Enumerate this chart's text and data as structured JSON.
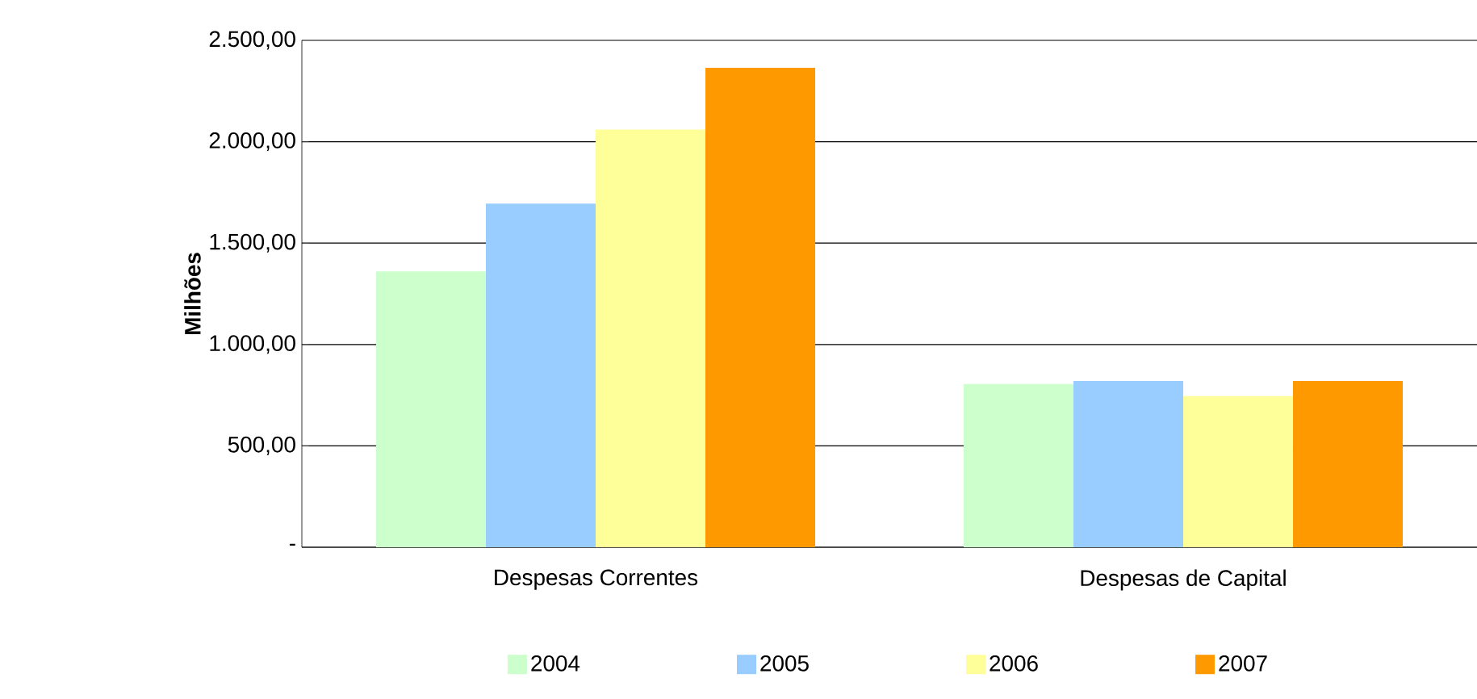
{
  "chart_data": {
    "type": "bar",
    "ylabel": "Milhões",
    "categories": [
      "Despesas Correntes",
      "Despesas de Capital"
    ],
    "series": [
      {
        "name": "2004",
        "color": "#ccffcc",
        "values": [
          1360,
          805
        ]
      },
      {
        "name": "2005",
        "color": "#99ccff",
        "values": [
          1695,
          820
        ]
      },
      {
        "name": "2006",
        "color": "#ffff99",
        "values": [
          2060,
          745
        ]
      },
      {
        "name": "2007",
        "color": "#ff9900",
        "values": [
          2365,
          820
        ]
      }
    ],
    "ylim": [
      0,
      2500
    ],
    "yticks": [
      {
        "value": 0,
        "label": "-"
      },
      {
        "value": 500,
        "label": "500,00"
      },
      {
        "value": 1000,
        "label": "1.000,00"
      },
      {
        "value": 1500,
        "label": "1.500,00"
      },
      {
        "value": 2000,
        "label": "2.000,00"
      },
      {
        "value": 2500,
        "label": "2.500,00"
      }
    ],
    "grid": "y",
    "legend": "bottom"
  }
}
